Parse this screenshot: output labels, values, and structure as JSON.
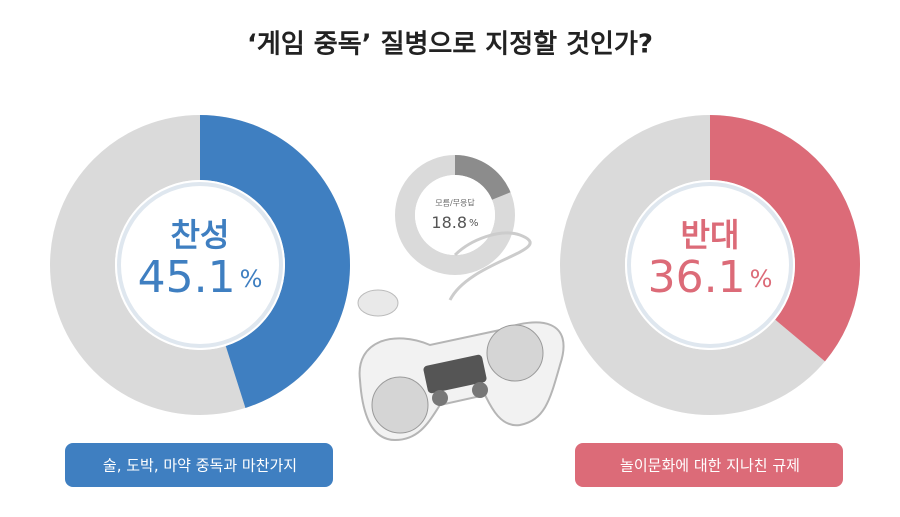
{
  "title": "‘게임 중독’ 질병으로 지정할 것인가?",
  "chart_data": [
    {
      "type": "donut",
      "label": "찬성",
      "values": [
        45.1
      ],
      "unit": "%",
      "color": "#3f7fc1",
      "caption": "술, 도박, 마약 중독과 마찬가지"
    },
    {
      "type": "donut",
      "label": "모름/무응답",
      "values": [
        18.8
      ],
      "unit": "%",
      "color": "#8c8c8c"
    },
    {
      "type": "donut",
      "label": "반대",
      "values": [
        36.1
      ],
      "unit": "%",
      "color": "#dc6b78",
      "caption": "놀이문화에 대한 지나친 규제"
    }
  ]
}
